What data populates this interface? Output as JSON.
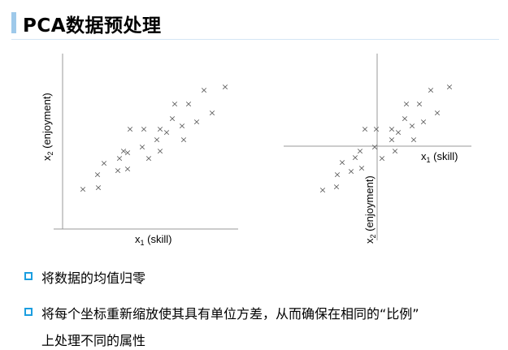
{
  "title": "PCA数据预处理",
  "left_plot": {
    "xlabel_main": "x",
    "xlabel_sub": "1",
    "xlabel_rest": " (skill)",
    "ylabel_main": "x",
    "ylabel_sub": "2",
    "ylabel_rest": " (enjoyment)"
  },
  "right_plot": {
    "xlabel_main": "x",
    "xlabel_sub": "1",
    "xlabel_rest": " (skill)",
    "ylabel_main": "x",
    "ylabel_sub": "2",
    "ylabel_rest": " (enjoyment)"
  },
  "marker": "×",
  "bullets": [
    {
      "text": "将数据的均值归零"
    },
    {
      "line1": "将每个坐标重新缩放使其具有单位方差，从而确保在相同的“比例”",
      "line2": "上处理不同的属性"
    }
  ],
  "colors": {
    "accent": "#9ec9ea",
    "bullet": "#1b9ee0",
    "axis": "#999999",
    "marker": "#666666"
  }
}
